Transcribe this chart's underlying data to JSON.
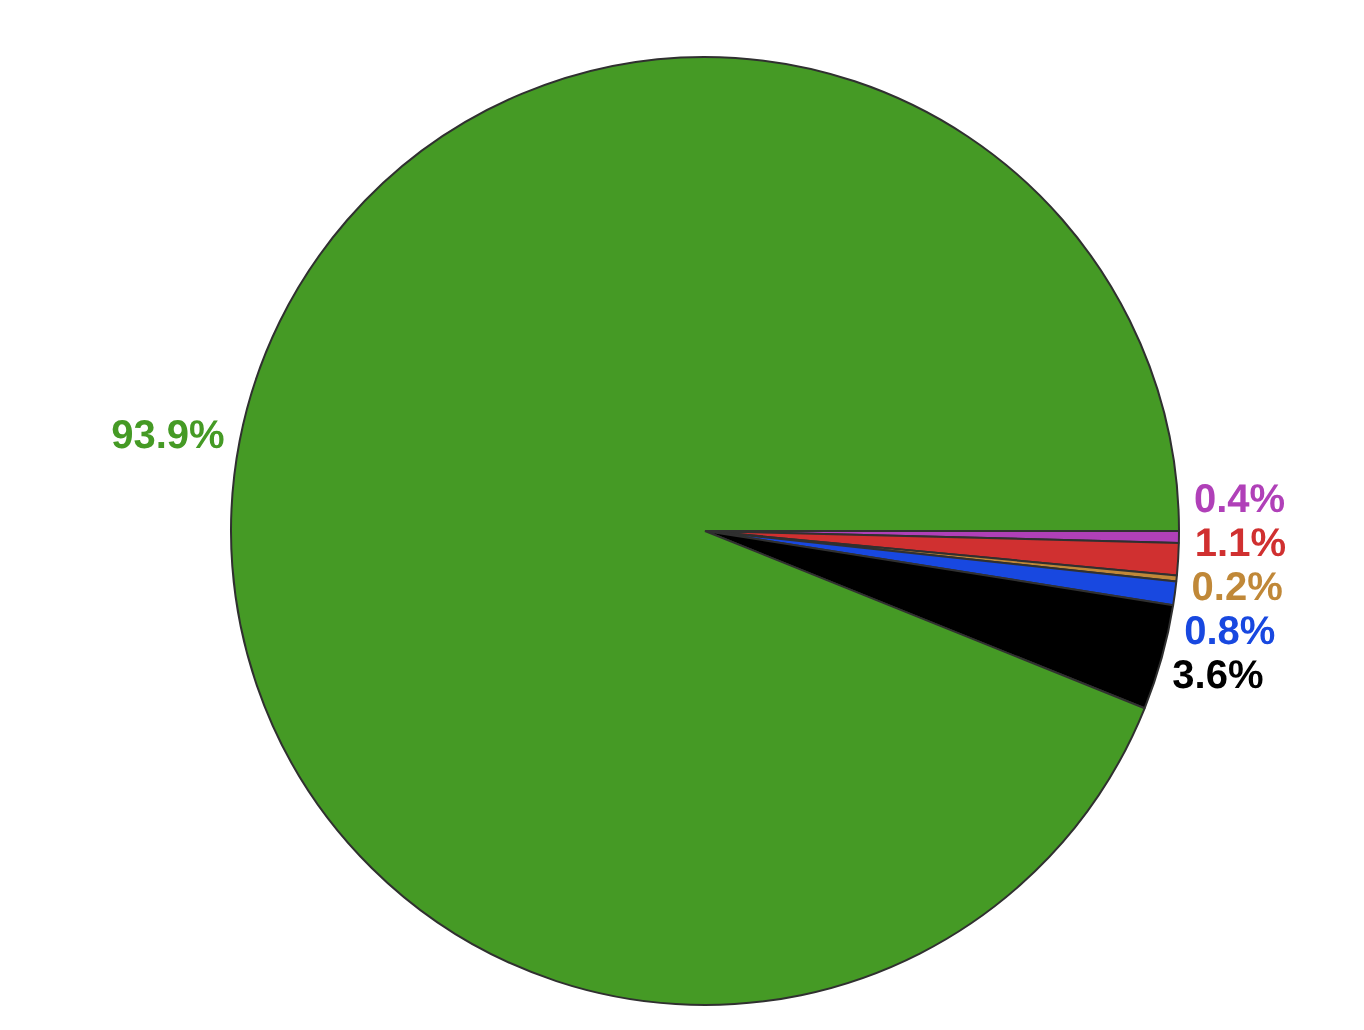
{
  "chart_data": {
    "type": "pie",
    "categories": [
      null,
      null,
      null,
      null,
      null,
      null
    ],
    "values": [
      0.4,
      1.1,
      0.2,
      0.8,
      3.6,
      93.9
    ],
    "colors": [
      "#b040b8",
      "#d03030",
      "#c08838",
      "#1848e0",
      "#000000",
      "#459a25"
    ],
    "value_labels": [
      "0.4%",
      "1.1%",
      "0.2%",
      "0.8%",
      "3.6%",
      "93.9%"
    ]
  }
}
